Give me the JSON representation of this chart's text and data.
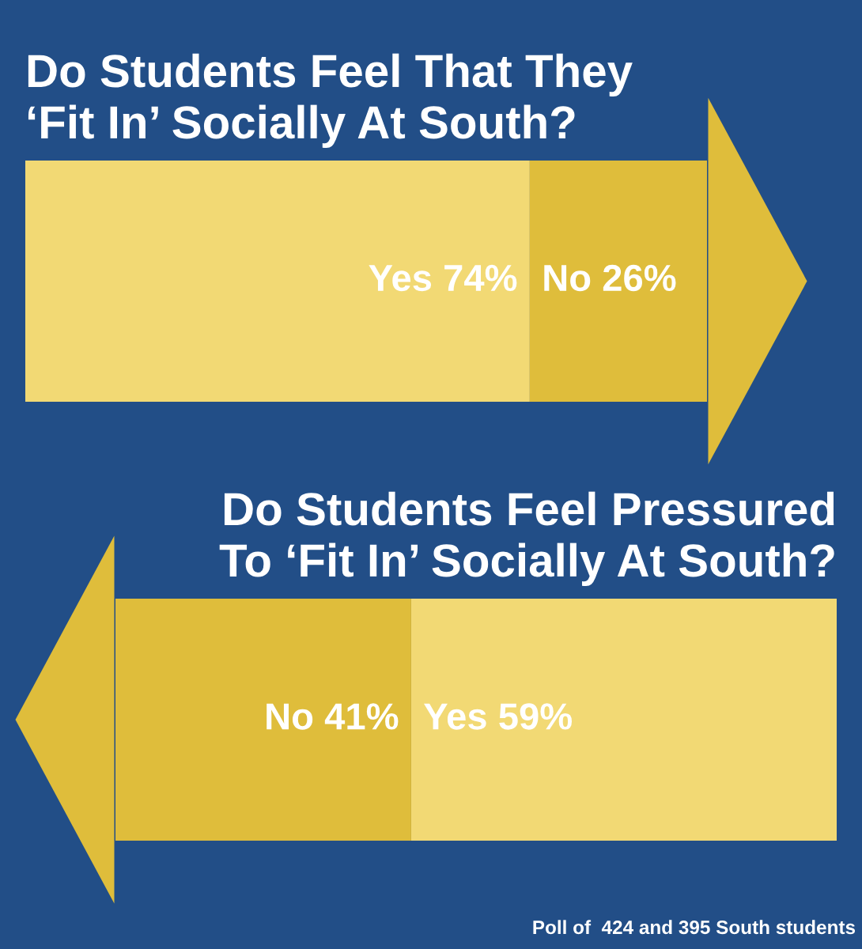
{
  "chart_data": [
    {
      "type": "bar",
      "orientation": "horizontal",
      "stacked": true,
      "title": "Do Students Feel That They\n‘Fit In’ Socially At South?",
      "categories": [
        null
      ],
      "xlim": [
        0,
        100
      ],
      "tick_labels": false,
      "series": [
        {
          "color": "#f2d974",
          "values": [
            74
          ],
          "value_labels": [
            "Yes 74%"
          ]
        },
        {
          "color": "#dfbd3b",
          "values": [
            26
          ],
          "value_labels": [
            "No 26%"
          ]
        }
      ]
    },
    {
      "type": "bar",
      "orientation": "horizontal",
      "stacked": true,
      "title": "Do Students Feel Pressured\nTo ‘Fit In’ Socially At South?",
      "categories": [
        null
      ],
      "xlim": [
        100,
        0
      ],
      "tick_labels": false,
      "series": [
        {
          "color": "#f2d974",
          "values": [
            59
          ],
          "value_labels": [
            "Yes 59%"
          ]
        },
        {
          "color": "#dfbd3b",
          "values": [
            41
          ],
          "value_labels": [
            "No 41%"
          ]
        }
      ],
      "annotations": [
        "Poll of  424 and 395 South students"
      ]
    }
  ]
}
